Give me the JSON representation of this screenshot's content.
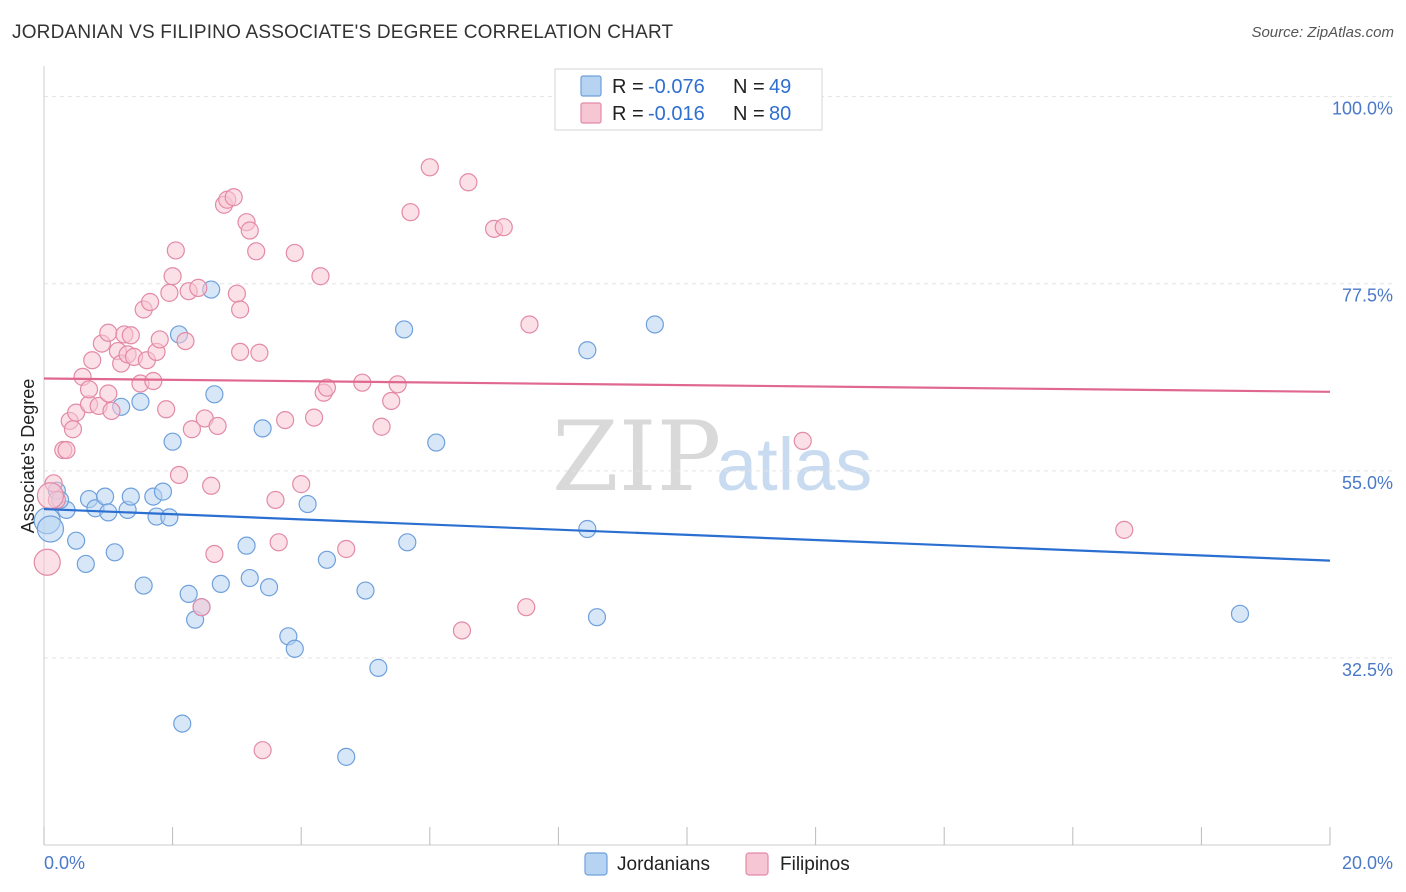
{
  "header": {
    "title": "JORDANIAN VS FILIPINO ASSOCIATE'S DEGREE CORRELATION CHART",
    "source": "Source: ZipAtlas.com"
  },
  "colors": {
    "jordanians_fill": "#b7d3f2",
    "jordanians_stroke": "#6fa0dc",
    "jordanians_line": "#2b6fd1",
    "filipinos_fill": "#f7c6d4",
    "filipinos_stroke": "#e38aa6",
    "filipinos_line": "#e0678f",
    "tick_text": "#4a79c9",
    "grid": "#e3e3e3"
  },
  "legend": {
    "r_label": "R =",
    "n_label": "N =",
    "jordanians": {
      "r": "-0.076",
      "n": "49"
    },
    "filipinos": {
      "r": "-0.016",
      "n": "80"
    }
  },
  "watermark": {
    "zip": "ZIP",
    "atlas": "atlas"
  },
  "chart_data": {
    "type": "scatter",
    "title": "JORDANIAN VS FILIPINO ASSOCIATE'S DEGREE CORRELATION CHART",
    "xlabel": "",
    "ylabel": "Associate's Degree",
    "xlim": [
      0,
      20
    ],
    "ylim": [
      10,
      102
    ],
    "x_tick_labels": [
      "0.0%",
      "20.0%"
    ],
    "y_ticks": [
      32.5,
      55.0,
      77.5,
      100.0
    ],
    "y_tick_labels": [
      "32.5%",
      "55.0%",
      "77.5%",
      "100.0%"
    ],
    "grid": "horizontal dashed",
    "legend_position": "top-center",
    "series": [
      {
        "name": "Jordanians",
        "r": -0.076,
        "n": 49,
        "trend": {
          "x": [
            0,
            20
          ],
          "y": [
            50.4,
            44.2
          ]
        },
        "points": [
          [
            0.05,
            49.0
          ],
          [
            0.2,
            52.6
          ],
          [
            0.35,
            50.3
          ],
          [
            0.5,
            46.6
          ],
          [
            0.65,
            43.8
          ],
          [
            0.7,
            51.6
          ],
          [
            0.8,
            50.5
          ],
          [
            0.95,
            51.9
          ],
          [
            1.0,
            50.0
          ],
          [
            1.1,
            45.2
          ],
          [
            1.2,
            62.7
          ],
          [
            1.3,
            50.3
          ],
          [
            1.35,
            51.9
          ],
          [
            1.5,
            63.3
          ],
          [
            1.55,
            41.2
          ],
          [
            1.7,
            51.9
          ],
          [
            1.75,
            49.5
          ],
          [
            1.85,
            52.5
          ],
          [
            1.95,
            49.4
          ],
          [
            2.0,
            58.5
          ],
          [
            2.1,
            71.4
          ],
          [
            2.15,
            24.6
          ],
          [
            2.25,
            40.2
          ],
          [
            2.35,
            37.1
          ],
          [
            2.45,
            38.6
          ],
          [
            2.6,
            76.8
          ],
          [
            2.65,
            64.2
          ],
          [
            2.75,
            41.4
          ],
          [
            3.15,
            46.0
          ],
          [
            3.2,
            42.1
          ],
          [
            3.4,
            60.1
          ],
          [
            3.5,
            41.0
          ],
          [
            3.8,
            35.1
          ],
          [
            3.9,
            33.6
          ],
          [
            4.1,
            51.0
          ],
          [
            4.4,
            44.3
          ],
          [
            4.7,
            20.6
          ],
          [
            5.0,
            40.6
          ],
          [
            5.2,
            31.3
          ],
          [
            5.6,
            72.0
          ],
          [
            5.65,
            46.4
          ],
          [
            6.1,
            58.4
          ],
          [
            8.45,
            48.0
          ],
          [
            8.6,
            37.4
          ],
          [
            9.5,
            72.6
          ],
          [
            18.6,
            37.8
          ],
          [
            0.1,
            48.0
          ],
          [
            8.45,
            69.5
          ],
          [
            0.25,
            51.5
          ]
        ]
      },
      {
        "name": "Filipinos",
        "r": -0.016,
        "n": 80,
        "trend": {
          "x": [
            0,
            20
          ],
          "y": [
            66.1,
            64.5
          ]
        },
        "points": [
          [
            0.05,
            44.0
          ],
          [
            0.15,
            53.5
          ],
          [
            0.2,
            51.5
          ],
          [
            0.3,
            57.5
          ],
          [
            0.35,
            57.5
          ],
          [
            0.4,
            61.0
          ],
          [
            0.45,
            60.0
          ],
          [
            0.5,
            62.0
          ],
          [
            0.6,
            66.3
          ],
          [
            0.7,
            63.0
          ],
          [
            0.7,
            64.8
          ],
          [
            0.75,
            68.3
          ],
          [
            0.85,
            62.8
          ],
          [
            0.9,
            70.3
          ],
          [
            1.0,
            64.3
          ],
          [
            1.0,
            71.6
          ],
          [
            1.05,
            62.2
          ],
          [
            1.15,
            69.4
          ],
          [
            1.2,
            67.9
          ],
          [
            1.25,
            71.4
          ],
          [
            1.3,
            69.0
          ],
          [
            1.35,
            71.3
          ],
          [
            1.4,
            68.7
          ],
          [
            1.5,
            65.5
          ],
          [
            1.55,
            74.4
          ],
          [
            1.6,
            68.3
          ],
          [
            1.65,
            75.3
          ],
          [
            1.7,
            65.8
          ],
          [
            1.75,
            69.3
          ],
          [
            1.8,
            70.8
          ],
          [
            1.9,
            62.4
          ],
          [
            1.95,
            76.4
          ],
          [
            2.0,
            78.4
          ],
          [
            2.05,
            81.5
          ],
          [
            2.1,
            54.5
          ],
          [
            2.2,
            70.6
          ],
          [
            2.25,
            76.6
          ],
          [
            2.3,
            60.0
          ],
          [
            2.4,
            77.0
          ],
          [
            2.45,
            38.6
          ],
          [
            2.5,
            61.3
          ],
          [
            2.6,
            53.2
          ],
          [
            2.65,
            45.0
          ],
          [
            2.7,
            60.4
          ],
          [
            2.8,
            87.0
          ],
          [
            2.85,
            87.6
          ],
          [
            2.95,
            87.9
          ],
          [
            3.0,
            76.3
          ],
          [
            3.05,
            74.4
          ],
          [
            3.05,
            69.3
          ],
          [
            3.15,
            84.9
          ],
          [
            3.2,
            83.9
          ],
          [
            3.3,
            81.4
          ],
          [
            3.35,
            69.2
          ],
          [
            3.4,
            21.4
          ],
          [
            3.6,
            51.5
          ],
          [
            3.65,
            46.4
          ],
          [
            3.75,
            61.1
          ],
          [
            3.9,
            81.2
          ],
          [
            4.0,
            53.4
          ],
          [
            4.2,
            61.4
          ],
          [
            4.3,
            78.4
          ],
          [
            4.35,
            64.4
          ],
          [
            4.4,
            65.0
          ],
          [
            4.7,
            45.6
          ],
          [
            4.95,
            65.6
          ],
          [
            5.25,
            60.3
          ],
          [
            5.4,
            63.4
          ],
          [
            5.5,
            65.4
          ],
          [
            5.7,
            86.1
          ],
          [
            6.0,
            91.5
          ],
          [
            6.5,
            35.8
          ],
          [
            6.6,
            89.7
          ],
          [
            7.0,
            84.1
          ],
          [
            7.15,
            84.3
          ],
          [
            7.5,
            38.6
          ],
          [
            7.55,
            72.6
          ],
          [
            11.8,
            58.6
          ],
          [
            16.8,
            47.9
          ],
          [
            0.1,
            52.0
          ]
        ]
      }
    ]
  },
  "bottom_legend": {
    "jordanians_label": "Jordanians",
    "filipinos_label": "Filipinos"
  }
}
